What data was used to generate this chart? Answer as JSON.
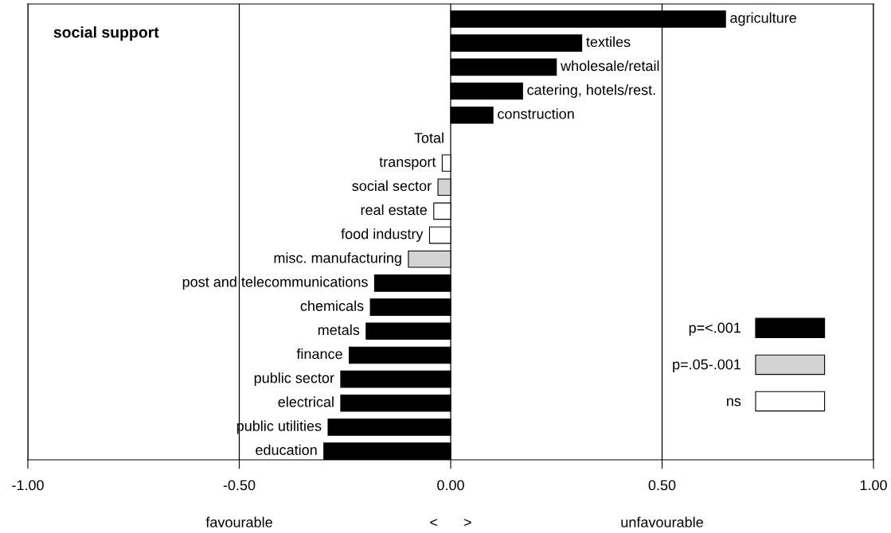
{
  "chart_data": {
    "type": "bar",
    "orientation": "horizontal",
    "title": "social support",
    "categories": [
      "agriculture",
      "textiles",
      "wholesale/retail",
      "catering, hotels/rest.",
      "construction",
      "Total",
      "transport",
      "social sector",
      "real estate",
      "food industry",
      "misc. manufacturing",
      "post and telecommunications",
      "chemicals",
      "metals",
      "finance",
      "public sector",
      "electrical",
      "public utilities",
      "education"
    ],
    "series": [
      {
        "name": "p=<.001",
        "color": "#000000",
        "values": [
          0.65,
          0.31,
          0.25,
          0.17,
          0.1,
          null,
          null,
          null,
          null,
          null,
          null,
          -0.18,
          -0.19,
          -0.2,
          -0.24,
          -0.26,
          -0.26,
          -0.29,
          -0.3
        ]
      },
      {
        "name": "p=.05-.001",
        "color": "#d3d3d3",
        "values": [
          null,
          null,
          null,
          null,
          null,
          null,
          null,
          -0.03,
          null,
          null,
          -0.1,
          null,
          null,
          null,
          null,
          null,
          null,
          null,
          null
        ]
      },
      {
        "name": "ns",
        "color": "#ffffff",
        "values": [
          null,
          null,
          null,
          null,
          null,
          null,
          -0.02,
          null,
          -0.04,
          -0.05,
          null,
          null,
          null,
          null,
          null,
          null,
          null,
          null,
          null
        ]
      }
    ],
    "xlim": [
      -1,
      1
    ],
    "xticks": [
      {
        "value": -1,
        "label": "-1.00"
      },
      {
        "value": -0.5,
        "label": "-0.50"
      },
      {
        "value": 0,
        "label": "0.00"
      },
      {
        "value": 0.5,
        "label": "0.50"
      },
      {
        "value": 1,
        "label": "1.00"
      }
    ],
    "tick_labels": "x",
    "grid": "x",
    "legend": "bottom right",
    "annotations": [
      "favourable",
      "<",
      ">",
      "unfavourable"
    ]
  }
}
